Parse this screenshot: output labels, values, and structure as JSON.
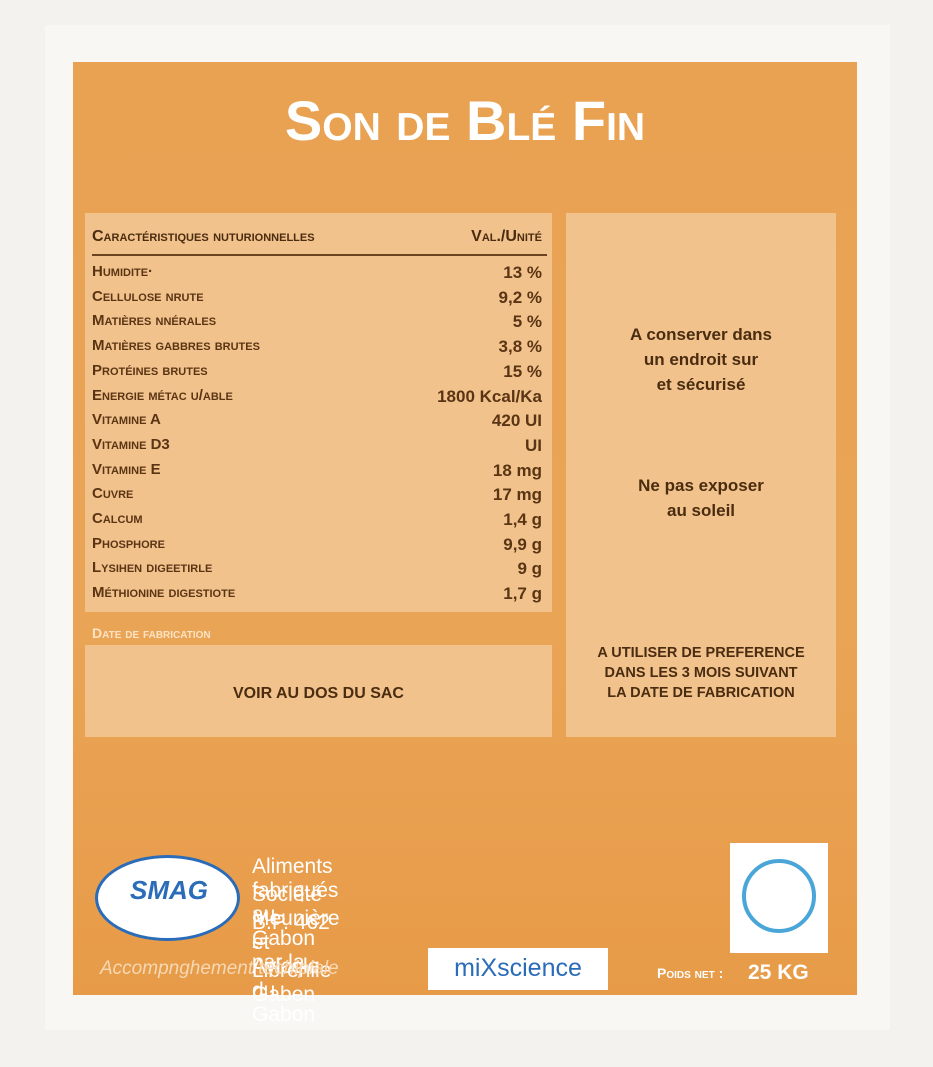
{
  "header": {
    "title": "Son de Blé Fin"
  },
  "table": {
    "columns": [
      "Caractéristiques nuturionnelles",
      "Val./Unité"
    ],
    "rows": [
      [
        "Humidite·",
        "13 %"
      ],
      [
        "Cellulose nrute",
        "9,2 %"
      ],
      [
        "Matières nnérales",
        "5 %"
      ],
      [
        "Matières gabbres brutes",
        "3,8 %"
      ],
      [
        "Protéines brutes",
        "15 %"
      ],
      [
        "Energie métac u/able",
        "1800 Kcal/Ka"
      ],
      [
        "Vitamine A",
        "420 UI"
      ],
      [
        "Vitamine D3",
        "UI"
      ],
      [
        "Vitamine E",
        "18 mg"
      ],
      [
        "Cuvre",
        "17 mg"
      ],
      [
        "Calcum",
        "1,4 g"
      ],
      [
        "Phosphore",
        "9,9 g"
      ],
      [
        "Lysihen digeetirle",
        "9 g"
      ],
      [
        "Méthionine digestiote",
        "1,7 g"
      ]
    ]
  },
  "date": {
    "label": "Date de fabrication",
    "text": "VOIR AU DOS DU SAC"
  },
  "notes": {
    "storage": [
      "A conserver dans",
      "un endroit sur",
      "et sécurisé"
    ],
    "sun": [
      "Ne pas exposer",
      "au soleil"
    ],
    "use": [
      "A UTILISER DE PREFERENCE",
      "DANS LES 3 MOIS SUIVANT",
      "LA DATE DE FABRICATION"
    ]
  },
  "footer": {
    "logo": "SMAG",
    "address": [
      "Aliments fabriqués au Gabon par la",
      "Société Meunière et Avicole du Gabon",
      "B.P. 462 - Librenile Gaben"
    ],
    "support": "Accompnghement techiplale",
    "partner": "miXscience",
    "weight_label": "Poids net :",
    "weight": "25 KG"
  }
}
